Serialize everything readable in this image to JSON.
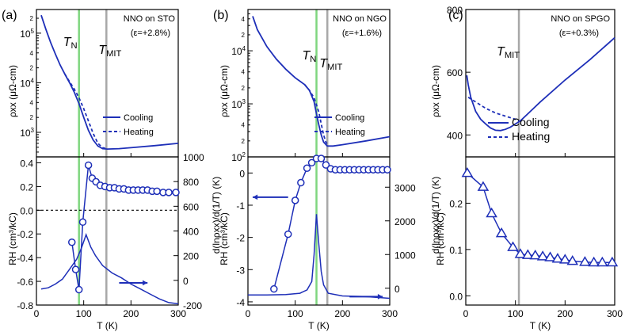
{
  "colors": {
    "blue": "#1e2fb8",
    "green": "#7fd67f",
    "gray": "#a8a8a8",
    "axis": "#000000"
  },
  "chart_data": [
    {
      "panel": "(a)",
      "title": "NNO  on STO",
      "strain": "(ε=+2.8%)",
      "annotations": {
        "tn": "T",
        "tn_sub": "N",
        "tmit": "T",
        "tmit_sub": "MIT"
      },
      "tn_value": 90,
      "tmit_value": 148,
      "xlabel": "T (K)",
      "xlim": [
        0,
        300
      ],
      "xticks": [
        0,
        100,
        200,
        300
      ],
      "top": {
        "type": "line",
        "yscale": "log",
        "ylim": [
          320,
          300000
        ],
        "ylabel": "ρxx (μΩ-cm)",
        "yticks": [
          {
            "v": 1000,
            "base": "10",
            "exp": "3"
          },
          {
            "v": 10000,
            "base": "10",
            "exp": "4"
          },
          {
            "v": 100000,
            "base": "10",
            "exp": "5"
          }
        ],
        "minor_labels": [
          {
            "v": 200000,
            "t": "2"
          },
          {
            "v": 20000,
            "t": "2"
          },
          {
            "v": 40000,
            "t": "4"
          },
          {
            "v": 2000,
            "t": "2"
          },
          {
            "v": 4000,
            "t": "4"
          }
        ],
        "legend": [
          "Cooling",
          "Heating"
        ],
        "series": [
          {
            "name": "Cooling",
            "dash": false,
            "x": [
              10,
              20,
              30,
              40,
              50,
              60,
              70,
              80,
              90,
              100,
              110,
              120,
              130,
              140,
              150,
              175,
              200,
              250,
              300
            ],
            "y": [
              230000,
              120000,
              65000,
              38000,
              23000,
              15000,
              10000,
              6500,
              3800,
              2000,
              1100,
              700,
              530,
              470,
              460,
              470,
              490,
              540,
              600
            ]
          },
          {
            "name": "Heating",
            "dash": true,
            "x": [
              60,
              70,
              80,
              90,
              100,
              110,
              120,
              130,
              140,
              150
            ],
            "y": [
              15000,
              10500,
              7500,
              5000,
              3000,
              1700,
              950,
              600,
              490,
              465
            ]
          }
        ]
      },
      "bottom": {
        "type": "line",
        "ylim": [
          -0.8,
          0.45
        ],
        "ylabel": "RH (cm³/kC)",
        "yticks": [
          -0.8,
          -0.6,
          -0.4,
          -0.2,
          0.0,
          0.2,
          0.4
        ],
        "y2label": "d(lnρxx)/d(1/T) (K)",
        "y2lim": [
          -200,
          1000
        ],
        "y2ticks": [
          -200,
          0,
          200,
          400,
          600,
          800,
          1000
        ],
        "arrow": "right",
        "rh_series": {
          "x": [
            75,
            83,
            90,
            98,
            110,
            118,
            126,
            135,
            145,
            155,
            165,
            175,
            185,
            195,
            205,
            215,
            225,
            235,
            245,
            255,
            268,
            280,
            295
          ],
          "y": [
            -0.27,
            -0.5,
            -0.67,
            -0.1,
            0.38,
            0.27,
            0.24,
            0.21,
            0.2,
            0.19,
            0.19,
            0.18,
            0.18,
            0.17,
            0.17,
            0.17,
            0.17,
            0.17,
            0.16,
            0.16,
            0.15,
            0.15,
            0.15
          ]
        },
        "deriv_series": {
          "x": [
            10,
            25,
            40,
            55,
            70,
            85,
            95,
            105,
            115,
            125,
            140,
            160,
            180,
            200,
            220,
            240,
            260,
            280,
            300
          ],
          "y": [
            -70,
            -60,
            -30,
            10,
            90,
            170,
            260,
            370,
            270,
            200,
            120,
            60,
            20,
            -30,
            -70,
            -110,
            -150,
            -180,
            -190
          ]
        }
      }
    },
    {
      "panel": "(b)",
      "title": "NNO  on NGO",
      "strain": "(ε=+1.6%)",
      "annotations": {
        "tn": "T",
        "tn_sub": "N",
        "tmit": "T",
        "tmit_sub": "MIT"
      },
      "tn_value": 145,
      "tmit_value": 168,
      "xlabel": "T (K)",
      "xlim": [
        0,
        300
      ],
      "xticks": [
        0,
        100,
        200,
        300
      ],
      "top": {
        "type": "line",
        "yscale": "log",
        "ylim": [
          100,
          60000
        ],
        "ylabel": "ρxx (μΩ-cm)",
        "yticks": [
          {
            "v": 100,
            "base": "10",
            "exp": "2"
          },
          {
            "v": 1000,
            "base": "10",
            "exp": "3"
          },
          {
            "v": 10000,
            "base": "10",
            "exp": "4"
          }
        ],
        "minor_labels": [
          {
            "v": 40000,
            "t": "4"
          },
          {
            "v": 20000,
            "t": "2"
          },
          {
            "v": 4000,
            "t": "4"
          },
          {
            "v": 2000,
            "t": "2"
          },
          {
            "v": 400,
            "t": "4"
          },
          {
            "v": 200,
            "t": "2"
          }
        ],
        "legend": [
          "Cooling",
          "Heating"
        ],
        "series": [
          {
            "name": "Cooling",
            "dash": false,
            "x": [
              10,
              20,
              40,
              60,
              80,
              100,
              120,
              130,
              140,
              145,
              150,
              155,
              160,
              168,
              180,
              200,
              250,
              300
            ],
            "y": [
              45000,
              25000,
              12000,
              7000,
              4500,
              3100,
              2300,
              1800,
              1100,
              650,
              400,
              260,
              190,
              160,
              160,
              170,
              200,
              240
            ]
          },
          {
            "name": "Heating",
            "dash": true,
            "x": [
              120,
              130,
              140,
              150,
              155,
              160,
              165,
              170
            ],
            "y": [
              2300,
              1800,
              1300,
              700,
              420,
              260,
              190,
              165
            ]
          }
        ]
      },
      "bottom": {
        "type": "line",
        "ylim": [
          -4.1,
          0.5
        ],
        "ylabel": "RH (cm³/kC)",
        "yticks": [
          -4,
          -3,
          -2,
          -1,
          0
        ],
        "y2label": "d(lnρxx)/d(1/T) (K)",
        "y2lim": [
          -500,
          3900
        ],
        "y2ticks": [
          0,
          1000,
          2000,
          3000
        ],
        "arrow": "both",
        "rh_series": {
          "x": [
            55,
            85,
            100,
            112,
            125,
            135,
            145,
            155,
            165,
            175,
            185,
            195,
            205,
            215,
            225,
            235,
            245,
            255,
            265,
            275,
            285,
            295
          ],
          "y": [
            -3.6,
            -1.9,
            -0.85,
            -0.3,
            0.15,
            0.32,
            0.45,
            0.45,
            0.25,
            0.13,
            0.1,
            0.1,
            0.1,
            0.1,
            0.1,
            0.1,
            0.1,
            0.1,
            0.1,
            0.1,
            0.1,
            0.1
          ]
        },
        "deriv_series": {
          "x": [
            0,
            40,
            80,
            110,
            125,
            135,
            140,
            145,
            150,
            155,
            160,
            170,
            200,
            250,
            300
          ],
          "y": [
            -200,
            -200,
            -190,
            -150,
            -50,
            200,
            1000,
            2200,
            1300,
            500,
            100,
            -150,
            -230,
            -250,
            -300
          ]
        }
      }
    },
    {
      "panel": "(c)",
      "title": "NNO  on SPGO",
      "strain": "(ε=+0.3%)",
      "annotations": {
        "tmit": "T",
        "tmit_sub": "MIT"
      },
      "tmit_value": 107,
      "xlabel": "T (K)",
      "xlim": [
        0,
        300
      ],
      "xticks": [
        0,
        100,
        200,
        300
      ],
      "top": {
        "type": "line",
        "ylim": [
          330,
          800
        ],
        "ylabel": "ρxx (μΩ-cm)",
        "yticks": [
          400,
          600,
          800
        ],
        "legend": [
          "Cooling",
          "Heating"
        ],
        "series": [
          {
            "name": "Cooling",
            "dash": false,
            "x": [
              2,
              5,
              10,
              20,
              30,
              40,
              50,
              60,
              70,
              80,
              90,
              100,
              110,
              130,
              150,
              200,
              250,
              300
            ],
            "y": [
              590,
              560,
              520,
              475,
              450,
              435,
              422,
              415,
              414,
              418,
              425,
              435,
              445,
              475,
              505,
              575,
              640,
              710
            ]
          },
          {
            "name": "Heating",
            "dash": true,
            "x": [
              5,
              20,
              40,
              60,
              80,
              100,
              107
            ],
            "y": [
              520,
              505,
              485,
              470,
              460,
              450,
              445
            ]
          }
        ]
      },
      "bottom": {
        "type": "scatter-line",
        "ylim": [
          -0.02,
          0.3
        ],
        "ylabel": "RH (cm³/kC)",
        "yticks": [
          0.0,
          0.1,
          0.2
        ],
        "rh_series": {
          "x": [
            3,
            35,
            52,
            72,
            95,
            110,
            125,
            140,
            155,
            170,
            185,
            200,
            215,
            240,
            258,
            275,
            295
          ],
          "y": [
            0.265,
            0.235,
            0.178,
            0.135,
            0.105,
            0.09,
            0.088,
            0.087,
            0.085,
            0.083,
            0.08,
            0.078,
            0.075,
            0.073,
            0.072,
            0.072,
            0.072
          ]
        }
      }
    }
  ]
}
